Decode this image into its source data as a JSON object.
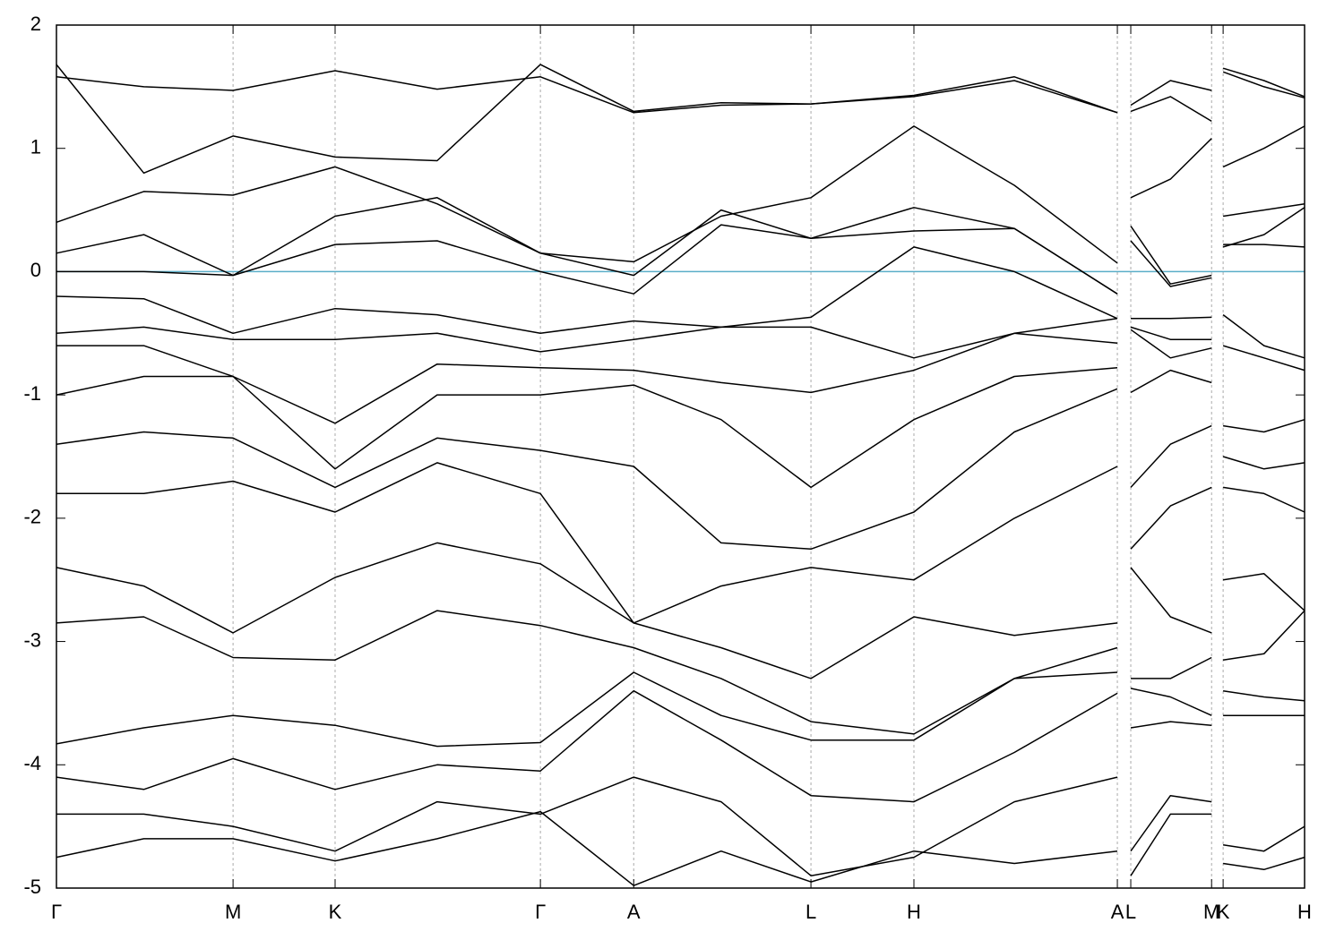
{
  "chart_data": {
    "type": "line",
    "x": [
      0,
      0.28,
      0.566,
      0.893,
      1.22,
      1.551,
      1.85,
      2.13,
      2.418,
      2.748,
      3.07,
      3.4,
      3.42,
      3.443,
      3.57,
      3.702,
      3.72,
      3.739,
      3.87,
      4.0
    ],
    "xlim": [
      0,
      4.0
    ],
    "xticks": [
      {
        "value": 0,
        "label": "Γ"
      },
      {
        "value": 0.566,
        "label": "M"
      },
      {
        "value": 0.893,
        "label": "K"
      },
      {
        "value": 1.551,
        "label": "Γ"
      },
      {
        "value": 1.85,
        "label": "A"
      },
      {
        "value": 2.418,
        "label": "L"
      },
      {
        "value": 2.748,
        "label": "H"
      },
      {
        "value": 3.4,
        "label": "A"
      },
      {
        "value": 3.443,
        "label": "L"
      },
      {
        "value": 3.702,
        "label": "M"
      },
      {
        "value": 3.739,
        "label": "K"
      },
      {
        "value": 4.0,
        "label": "H"
      }
    ],
    "ylim": [
      -5,
      2
    ],
    "yticks": [
      -5,
      -4,
      -3,
      -2,
      -1,
      0,
      1,
      2
    ],
    "grid_x": true,
    "line_color": "#000000",
    "fermi_level": {
      "value": 0,
      "color": "#5aaec8"
    },
    "series": [
      {
        "values": [
          1.58,
          1.5,
          1.47,
          1.63,
          1.48,
          1.58,
          1.29,
          1.35,
          1.36,
          1.42,
          1.55,
          1.29,
          null,
          1.35,
          1.55,
          1.47,
          null,
          1.65,
          1.55,
          1.42
        ]
      },
      {
        "values": [
          1.68,
          0.8,
          1.1,
          0.93,
          0.9,
          1.68,
          1.3,
          1.37,
          1.36,
          1.43,
          1.58,
          1.29,
          null,
          1.3,
          1.42,
          1.22,
          null,
          1.62,
          1.5,
          1.41
        ]
      },
      {
        "values": [
          0.4,
          0.65,
          0.62,
          0.85,
          0.55,
          0.15,
          0.08,
          0.45,
          0.6,
          1.18,
          0.7,
          0.07,
          null,
          0.6,
          0.75,
          1.08,
          null,
          0.85,
          1.0,
          1.18
        ]
      },
      {
        "values": [
          0.15,
          0.3,
          -0.03,
          0.45,
          0.6,
          0.15,
          -0.03,
          0.5,
          0.27,
          0.52,
          0.35,
          -0.18,
          null,
          0.37,
          -0.1,
          -0.03,
          null,
          0.45,
          0.5,
          0.55
        ]
      },
      {
        "values": [
          0.0,
          0.0,
          -0.03,
          0.22,
          0.25,
          0.0,
          -0.18,
          0.38,
          0.27,
          0.33,
          0.35,
          -0.18,
          null,
          0.25,
          -0.12,
          -0.05,
          null,
          0.2,
          0.3,
          0.52
        ]
      },
      {
        "values": [
          -0.2,
          -0.22,
          -0.5,
          -0.3,
          -0.35,
          -0.5,
          -0.4,
          -0.45,
          -0.37,
          0.2,
          0.0,
          -0.38,
          null,
          -0.38,
          -0.38,
          -0.37,
          null,
          0.22,
          0.22,
          0.2
        ]
      },
      {
        "values": [
          -0.5,
          -0.45,
          -0.55,
          -0.55,
          -0.5,
          -0.65,
          -0.55,
          -0.45,
          -0.45,
          -0.7,
          -0.5,
          -0.38,
          null,
          -0.45,
          -0.55,
          -0.55,
          null,
          -0.35,
          -0.6,
          -0.7
        ]
      },
      {
        "values": [
          -0.6,
          -0.6,
          -0.85,
          -1.23,
          -0.75,
          -0.78,
          -0.8,
          -0.9,
          -0.98,
          -0.8,
          -0.5,
          -0.58,
          null,
          -0.47,
          -0.7,
          -0.62,
          null,
          -0.6,
          -0.7,
          -0.8
        ]
      },
      {
        "values": [
          -1.0,
          -0.85,
          -0.85,
          -1.6,
          -1.0,
          -1.0,
          -0.92,
          -1.2,
          -1.75,
          -1.2,
          -0.85,
          -0.78,
          null,
          -0.98,
          -0.8,
          -0.9,
          null,
          -1.25,
          -1.3,
          -1.2
        ]
      },
      {
        "values": [
          -1.4,
          -1.3,
          -1.35,
          -1.75,
          -1.35,
          -1.45,
          -1.58,
          -2.2,
          -2.25,
          -1.95,
          -1.3,
          -0.95,
          null,
          -1.75,
          -1.4,
          -1.25,
          null,
          -1.5,
          -1.6,
          -1.55
        ]
      },
      {
        "values": [
          -1.8,
          -1.8,
          -1.7,
          -1.95,
          -1.55,
          -1.8,
          -2.85,
          -2.55,
          -2.4,
          -2.5,
          -2.0,
          -1.58,
          null,
          -2.25,
          -1.9,
          -1.75,
          null,
          -1.75,
          -1.8,
          -1.95
        ]
      },
      {
        "values": [
          -2.4,
          -2.55,
          -2.93,
          -2.48,
          -2.2,
          -2.37,
          -2.85,
          -3.05,
          -3.3,
          -2.8,
          -2.95,
          -2.85,
          null,
          -2.4,
          -2.8,
          -2.93,
          null,
          -2.5,
          -2.45,
          -2.75
        ]
      },
      {
        "values": [
          -2.85,
          -2.8,
          -3.13,
          -3.15,
          -2.75,
          -2.87,
          -3.05,
          -3.3,
          -3.65,
          -3.75,
          -3.3,
          -3.05,
          null,
          -3.3,
          -3.3,
          -3.13,
          null,
          -3.15,
          -3.1,
          -2.75
        ]
      },
      {
        "values": [
          -3.83,
          -3.7,
          -3.6,
          -3.68,
          -3.85,
          -3.82,
          -3.25,
          -3.6,
          -3.8,
          -3.8,
          -3.3,
          -3.25,
          null,
          -3.38,
          -3.45,
          -3.6,
          null,
          -3.4,
          -3.45,
          -3.48
        ]
      },
      {
        "values": [
          -4.1,
          -4.2,
          -3.95,
          -4.2,
          -4.0,
          -4.05,
          -3.4,
          -3.8,
          -4.25,
          -4.3,
          -3.9,
          -3.42,
          null,
          -3.7,
          -3.65,
          -3.68,
          null,
          -3.6,
          -3.6,
          -3.6
        ]
      },
      {
        "values": [
          -4.4,
          -4.4,
          -4.5,
          -4.7,
          -4.3,
          -4.4,
          -4.1,
          -4.3,
          -4.9,
          -4.75,
          -4.3,
          -4.1,
          null,
          -4.7,
          -4.25,
          -4.3,
          null,
          -4.65,
          -4.7,
          -4.5
        ]
      },
      {
        "values": [
          -4.75,
          -4.6,
          -4.6,
          -4.78,
          -4.6,
          -4.38,
          -4.98,
          -4.7,
          -4.95,
          -4.7,
          -4.8,
          -4.7,
          null,
          -4.9,
          -4.4,
          -4.4,
          null,
          -4.8,
          -4.85,
          -4.75
        ]
      }
    ]
  }
}
